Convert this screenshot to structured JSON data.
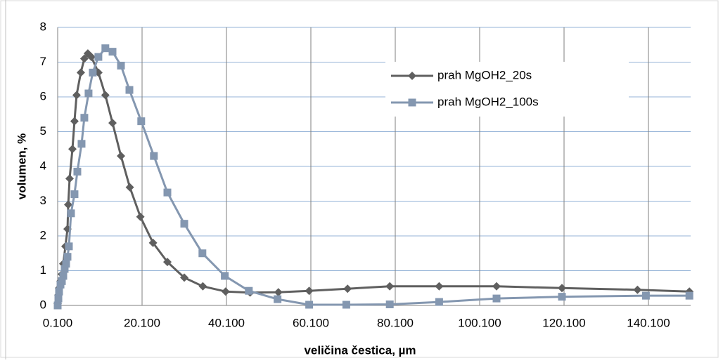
{
  "chart_data": {
    "type": "line",
    "x_label": "veličina čestica, µm",
    "y_label": "volumen, %",
    "xlim": [
      0.1,
      150.1
    ],
    "xticks": [
      {
        "value": 0.1,
        "label": "0.100"
      },
      {
        "value": 20.1,
        "label": "20.100"
      },
      {
        "value": 40.1,
        "label": "40.100"
      },
      {
        "value": 60.1,
        "label": "60.100"
      },
      {
        "value": 80.1,
        "label": "80.100"
      },
      {
        "value": 100.1,
        "label": "100.100"
      },
      {
        "value": 120.1,
        "label": "120.100"
      },
      {
        "value": 140.1,
        "label": "140.100"
      }
    ],
    "ylim": [
      0,
      8
    ],
    "yticks": [
      0,
      1,
      2,
      3,
      4,
      5,
      6,
      7,
      8
    ],
    "grid": true,
    "legend": "upper right",
    "series": [
      {
        "name": "prah MgOH2_20s",
        "color": "#5f5f5f",
        "marker": "diamond",
        "x": [
          0.1,
          0.27,
          0.43,
          0.77,
          1.1,
          1.43,
          1.93,
          2.43,
          2.6,
          2.93,
          3.6,
          4.09,
          4.59,
          5.59,
          6.42,
          7.25,
          8.09,
          9.75,
          11.4,
          13.1,
          15.1,
          17.2,
          19.7,
          22.7,
          26.1,
          30.1,
          34.5,
          39.9,
          45.7,
          52.4,
          59.7,
          68.8,
          78.8,
          90.5,
          104.1,
          119.6,
          137.5,
          149.8
        ],
        "values": [
          0.05,
          0.3,
          0.5,
          0.7,
          0.9,
          1.2,
          1.7,
          2.2,
          2.9,
          3.65,
          4.5,
          5.3,
          6.05,
          6.7,
          7.1,
          7.25,
          7.15,
          6.7,
          6.05,
          5.25,
          4.3,
          3.4,
          2.55,
          1.8,
          1.25,
          0.8,
          0.55,
          0.4,
          0.37,
          0.38,
          0.42,
          0.48,
          0.55,
          0.55,
          0.55,
          0.5,
          0.45,
          0.4
        ]
      },
      {
        "name": "prah MgOH2_100s",
        "color": "#8497b0",
        "marker": "square",
        "x": [
          0.1,
          0.27,
          0.43,
          0.77,
          1.1,
          1.43,
          1.76,
          2.1,
          2.43,
          2.76,
          3.26,
          4.09,
          4.76,
          5.76,
          6.42,
          7.42,
          8.42,
          9.75,
          11.4,
          13.1,
          15.1,
          17.1,
          19.9,
          22.9,
          26.1,
          30.1,
          34.4,
          39.7,
          45.4,
          52.2,
          59.7,
          68.5,
          78.8,
          90.5,
          104.1,
          119.6,
          139.5,
          149.8
        ],
        "values": [
          0,
          0.2,
          0.4,
          0.6,
          0.7,
          0.85,
          1.05,
          1.2,
          1.4,
          1.7,
          2.65,
          3.2,
          3.85,
          4.65,
          5.4,
          6.1,
          6.7,
          7.15,
          7.4,
          7.3,
          6.9,
          6.2,
          5.3,
          4.3,
          3.25,
          2.35,
          1.5,
          0.85,
          0.42,
          0.18,
          0.02,
          0.02,
          0.03,
          0.1,
          0.2,
          0.25,
          0.28,
          0.28
        ]
      }
    ]
  }
}
